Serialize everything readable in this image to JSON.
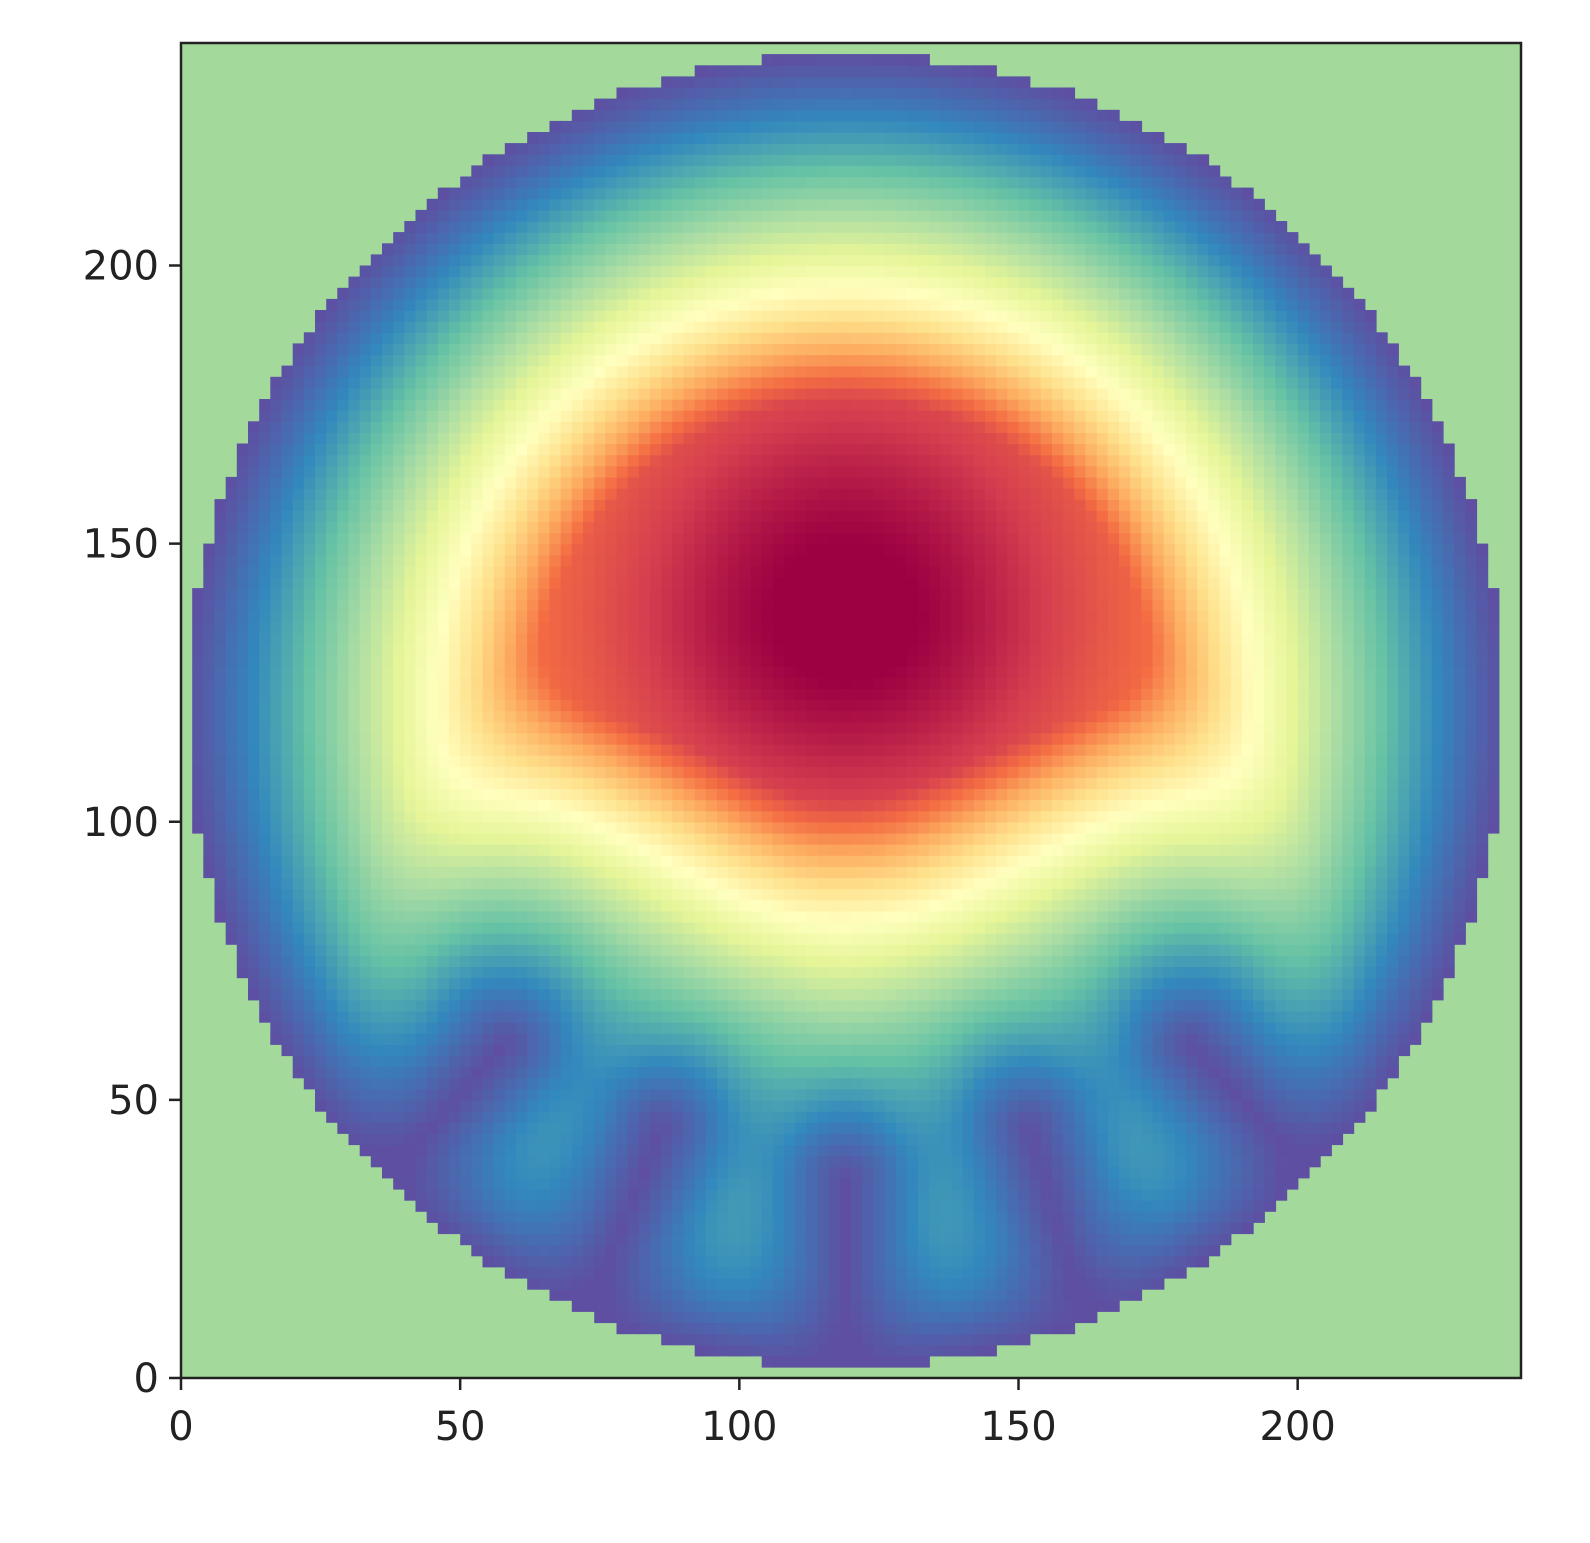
{
  "chart_data": {
    "type": "heatmap",
    "title": "",
    "xlabel": "",
    "ylabel": "",
    "xlim": [
      0,
      240
    ],
    "ylim": [
      0,
      240
    ],
    "x_ticks": [
      0,
      50,
      100,
      150,
      200
    ],
    "y_ticks": [
      0,
      50,
      100,
      150,
      200
    ],
    "x_tick_labels": [
      "0",
      "50",
      "100",
      "150",
      "200"
    ],
    "y_tick_labels": [
      "0",
      "50",
      "100",
      "150",
      "200"
    ],
    "colormap": "Spectral_r",
    "background_color": "#a3d99b",
    "domain": {
      "shape": "circle",
      "center": [
        119,
        120
      ],
      "radius": 118
    },
    "peak": {
      "x": 119,
      "y": 137,
      "level": 1.0
    },
    "low_value_fingers": [
      {
        "from": [
          40,
          40
        ],
        "to": [
          58,
          60
        ]
      },
      {
        "from": [
          75,
          17
        ],
        "to": [
          86,
          45
        ]
      },
      {
        "from": [
          119,
          8
        ],
        "to": [
          119,
          36
        ]
      },
      {
        "from": [
          160,
          17
        ],
        "to": [
          152,
          45
        ]
      },
      {
        "from": [
          199,
          40
        ],
        "to": [
          181,
          60
        ]
      }
    ],
    "grid": false,
    "legend": "none"
  }
}
